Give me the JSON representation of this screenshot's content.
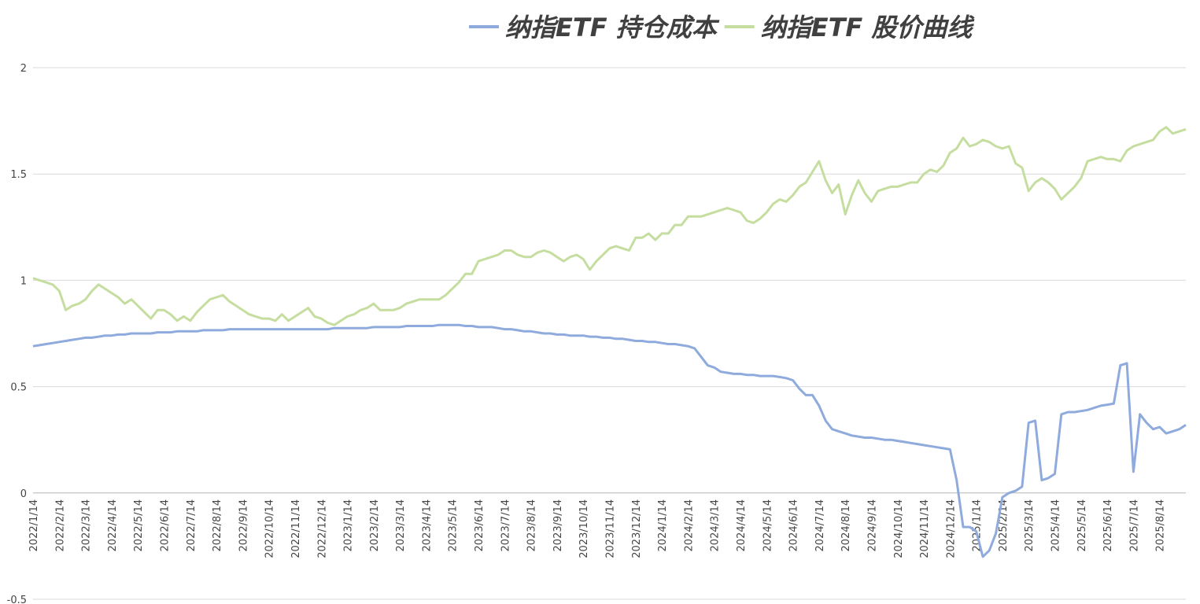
{
  "chart_data": {
    "type": "line",
    "categories": [
      "2022/1/14",
      null,
      null,
      null,
      "2022/2/14",
      null,
      null,
      null,
      "2022/3/14",
      null,
      null,
      null,
      "2022/4/14",
      null,
      null,
      null,
      "2022/5/14",
      null,
      null,
      null,
      "2022/6/14",
      null,
      null,
      null,
      "2022/7/14",
      null,
      null,
      null,
      "2022/8/14",
      null,
      null,
      null,
      "2022/9/14",
      null,
      null,
      null,
      "2022/10/14",
      null,
      null,
      null,
      "2022/11/14",
      null,
      null,
      null,
      "2022/12/14",
      null,
      null,
      null,
      "2023/1/14",
      null,
      null,
      null,
      "2023/2/14",
      null,
      null,
      null,
      "2023/3/14",
      null,
      null,
      null,
      "2023/4/14",
      null,
      null,
      null,
      "2023/5/14",
      null,
      null,
      null,
      "2023/6/14",
      null,
      null,
      null,
      "2023/7/14",
      null,
      null,
      null,
      "2023/8/14",
      null,
      null,
      null,
      "2023/9/14",
      null,
      null,
      null,
      "2023/10/14",
      null,
      null,
      null,
      "2023/11/14",
      null,
      null,
      null,
      "2023/12/14",
      null,
      null,
      null,
      "2024/1/14",
      null,
      null,
      null,
      "2024/2/14",
      null,
      null,
      null,
      "2024/3/14",
      null,
      null,
      null,
      "2024/4/14",
      null,
      null,
      null,
      "2024/5/14",
      null,
      null,
      null,
      "2024/6/14",
      null,
      null,
      null,
      "2024/7/14",
      null,
      null,
      null,
      "2024/8/14",
      null,
      null,
      null,
      "2024/9/14",
      null,
      null,
      null,
      "2024/10/14",
      null,
      null,
      null,
      "2024/11/14",
      null,
      null,
      null,
      "2024/12/14",
      null,
      null,
      null,
      "2025/1/14",
      null,
      null,
      null,
      "2025/2/14",
      null,
      null,
      null,
      "2025/3/14",
      null,
      null,
      null,
      "2025/4/14",
      null,
      null,
      null,
      "2025/5/14",
      null,
      null,
      null,
      "2025/6/14",
      null,
      null,
      null,
      "2025/7/14",
      null,
      null,
      null,
      "2025/8/14",
      null,
      null,
      null,
      null
    ],
    "series": [
      {
        "name": "纳指ETF 持仓成本",
        "color": "#8faadc",
        "values": [
          0.69,
          0.695,
          0.7,
          0.705,
          0.71,
          0.715,
          0.72,
          0.725,
          0.73,
          0.73,
          0.735,
          0.74,
          0.74,
          0.745,
          0.745,
          0.75,
          0.75,
          0.75,
          0.75,
          0.755,
          0.755,
          0.755,
          0.76,
          0.76,
          0.76,
          0.76,
          0.765,
          0.765,
          0.765,
          0.765,
          0.77,
          0.77,
          0.77,
          0.77,
          0.77,
          0.77,
          0.77,
          0.77,
          0.77,
          0.77,
          0.77,
          0.77,
          0.77,
          0.77,
          0.77,
          0.77,
          0.775,
          0.775,
          0.775,
          0.775,
          0.775,
          0.775,
          0.78,
          0.78,
          0.78,
          0.78,
          0.78,
          0.785,
          0.785,
          0.785,
          0.785,
          0.785,
          0.79,
          0.79,
          0.79,
          0.79,
          0.785,
          0.785,
          0.78,
          0.78,
          0.78,
          0.775,
          0.77,
          0.77,
          0.765,
          0.76,
          0.76,
          0.755,
          0.75,
          0.75,
          0.745,
          0.745,
          0.74,
          0.74,
          0.74,
          0.735,
          0.735,
          0.73,
          0.73,
          0.725,
          0.725,
          0.72,
          0.715,
          0.715,
          0.71,
          0.71,
          0.705,
          0.7,
          0.7,
          0.695,
          0.69,
          0.68,
          0.64,
          0.6,
          0.59,
          0.57,
          0.565,
          0.56,
          0.56,
          0.555,
          0.555,
          0.55,
          0.55,
          0.55,
          0.545,
          0.54,
          0.53,
          0.49,
          0.46,
          0.46,
          0.41,
          0.34,
          0.3,
          0.29,
          0.28,
          0.27,
          0.265,
          0.26,
          0.26,
          0.255,
          0.25,
          0.25,
          0.245,
          0.24,
          0.235,
          0.23,
          0.225,
          0.22,
          0.215,
          0.21,
          0.205,
          0.06,
          -0.16,
          -0.16,
          -0.18,
          -0.3,
          -0.27,
          -0.19,
          -0.02,
          0.0,
          0.01,
          0.03,
          0.33,
          0.34,
          0.06,
          0.07,
          0.09,
          0.37,
          0.38,
          0.38,
          0.385,
          0.39,
          0.4,
          0.41,
          0.415,
          0.42,
          0.6,
          0.61,
          0.1,
          0.37,
          0.33,
          0.3,
          0.31,
          0.28,
          0.29,
          0.3,
          0.32
        ]
      },
      {
        "name": "纳指ETF 股价曲线",
        "color": "#c5dea0",
        "values": [
          1.01,
          1.0,
          0.99,
          0.98,
          0.95,
          0.86,
          0.88,
          0.89,
          0.91,
          0.95,
          0.98,
          0.96,
          0.94,
          0.92,
          0.89,
          0.91,
          0.88,
          0.85,
          0.82,
          0.86,
          0.86,
          0.84,
          0.81,
          0.83,
          0.81,
          0.85,
          0.88,
          0.91,
          0.92,
          0.93,
          0.9,
          0.88,
          0.86,
          0.84,
          0.83,
          0.82,
          0.82,
          0.81,
          0.84,
          0.81,
          0.83,
          0.85,
          0.87,
          0.83,
          0.82,
          0.8,
          0.79,
          0.81,
          0.83,
          0.84,
          0.86,
          0.87,
          0.89,
          0.86,
          0.86,
          0.86,
          0.87,
          0.89,
          0.9,
          0.91,
          0.91,
          0.91,
          0.91,
          0.93,
          0.96,
          0.99,
          1.03,
          1.03,
          1.09,
          1.1,
          1.11,
          1.12,
          1.14,
          1.14,
          1.12,
          1.11,
          1.11,
          1.13,
          1.14,
          1.13,
          1.11,
          1.09,
          1.11,
          1.12,
          1.1,
          1.05,
          1.09,
          1.12,
          1.15,
          1.16,
          1.15,
          1.14,
          1.2,
          1.2,
          1.22,
          1.19,
          1.22,
          1.22,
          1.26,
          1.26,
          1.3,
          1.3,
          1.3,
          1.31,
          1.32,
          1.33,
          1.34,
          1.33,
          1.32,
          1.28,
          1.27,
          1.29,
          1.32,
          1.36,
          1.38,
          1.37,
          1.4,
          1.44,
          1.46,
          1.51,
          1.56,
          1.47,
          1.41,
          1.45,
          1.31,
          1.4,
          1.47,
          1.41,
          1.37,
          1.42,
          1.43,
          1.44,
          1.44,
          1.45,
          1.46,
          1.46,
          1.5,
          1.52,
          1.51,
          1.54,
          1.6,
          1.62,
          1.67,
          1.63,
          1.64,
          1.66,
          1.65,
          1.63,
          1.62,
          1.63,
          1.55,
          1.53,
          1.42,
          1.46,
          1.48,
          1.46,
          1.43,
          1.38,
          1.41,
          1.44,
          1.48,
          1.56,
          1.57,
          1.58,
          1.57,
          1.57,
          1.56,
          1.61,
          1.63,
          1.64,
          1.65,
          1.66,
          1.7,
          1.72,
          1.69,
          1.7,
          1.71
        ]
      }
    ],
    "ylim": [
      -0.5,
      2
    ],
    "yticks": [
      -0.5,
      0,
      0.5,
      1,
      1.5,
      2
    ],
    "grid": true
  }
}
